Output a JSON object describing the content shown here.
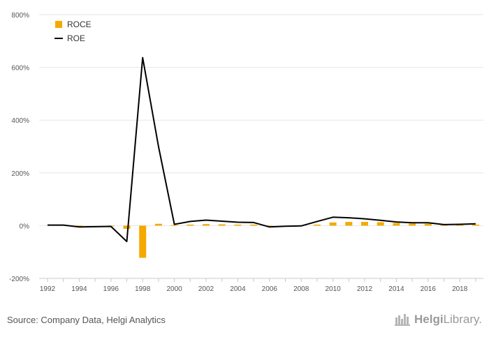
{
  "chart_data": {
    "type": "bar+line",
    "title": "",
    "xlabel": "",
    "ylabel": "",
    "ylim": [
      -200,
      800
    ],
    "yticks": [
      -200,
      0,
      200,
      400,
      600,
      800
    ],
    "ytick_labels": [
      "-200%",
      "0%",
      "200%",
      "400%",
      "600%",
      "800%"
    ],
    "xtick_labels": [
      "1992",
      "1994",
      "1996",
      "1998",
      "2000",
      "2002",
      "2004",
      "2006",
      "2008",
      "2010",
      "2012",
      "2014",
      "2016",
      "2018"
    ],
    "categories": [
      1992,
      1993,
      1994,
      1995,
      1996,
      1997,
      1998,
      1999,
      2000,
      2001,
      2002,
      2003,
      2004,
      2005,
      2006,
      2007,
      2008,
      2009,
      2010,
      2011,
      2012,
      2013,
      2014,
      2015,
      2016,
      2017,
      2018,
      2019
    ],
    "series": [
      {
        "name": "ROCE",
        "kind": "bar",
        "color": "#f5a800",
        "values": [
          0,
          0,
          -4,
          0,
          -2,
          -12,
          -122,
          7,
          2,
          4,
          6,
          5,
          4,
          4,
          -2,
          0,
          0,
          4,
          12,
          14,
          14,
          13,
          10,
          8,
          7,
          3,
          3,
          4
        ]
      },
      {
        "name": "ROE",
        "kind": "line",
        "color": "#000000",
        "values": [
          2,
          2,
          -5,
          -4,
          -3,
          -60,
          637,
          300,
          5,
          16,
          21,
          17,
          13,
          12,
          -5,
          -2,
          -1,
          16,
          32,
          30,
          26,
          20,
          14,
          11,
          11,
          4,
          5,
          7
        ]
      }
    ],
    "legend_position": "top-left",
    "grid": true
  },
  "footer": {
    "source": "Source: Company Data, Helgi Analytics",
    "brand_name": "Helgi",
    "brand_suffix": "Library."
  },
  "colors": {
    "roce": "#f5a800",
    "roe": "#000000",
    "grid": "#e6e6e6",
    "axis_text": "#555555"
  }
}
